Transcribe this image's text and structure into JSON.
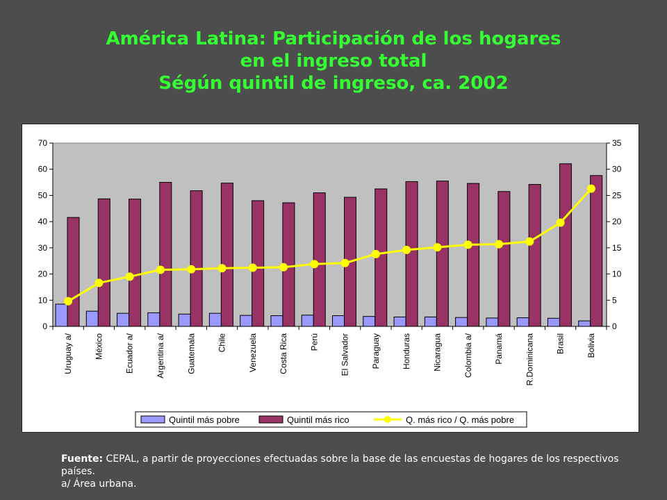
{
  "title": {
    "line1": "América Latina: Participación de los hogares",
    "line2": "en el ingreso total",
    "line3": "Ségún quintil de ingreso, ca. 2002"
  },
  "footer": {
    "source_label": "Fuente:",
    "source_text": " CEPAL, a partir de proyecciones efectuadas sobre la base de las encuestas de hogares de los respectivos países.",
    "note": "a/ Área urbana."
  },
  "colors": {
    "background": "#4d4d4d",
    "title": "#33ff33",
    "plot_area": "#c0c0c0",
    "poorest": "#9999ff",
    "richest": "#993366",
    "ratio_line": "#ffff00"
  },
  "chart_data": {
    "type": "bar",
    "categories": [
      "Uruguay a/",
      "México",
      "Ecuador a/",
      "Argentina a/",
      "Guatemala",
      "Chile",
      "Venezuela",
      "Costa Rica",
      "Perú",
      "El Salvador",
      "Paraguay",
      "Honduras",
      "Nicaragua",
      "Colombia a/",
      "Panamá",
      "R.Dominicana",
      "Brasil",
      "Bolivia"
    ],
    "series": [
      {
        "name": "Quintil más pobre",
        "type": "bar",
        "axis": "left",
        "values": [
          8.5,
          5.8,
          5.0,
          5.2,
          4.7,
          5.0,
          4.2,
          4.1,
          4.3,
          4.1,
          3.8,
          3.6,
          3.6,
          3.4,
          3.2,
          3.3,
          3.1,
          2.1
        ]
      },
      {
        "name": "Quintil más rico",
        "type": "bar",
        "axis": "left",
        "values": [
          41.6,
          48.7,
          48.6,
          55.0,
          51.8,
          54.7,
          48.0,
          47.2,
          51.0,
          49.3,
          52.5,
          55.3,
          55.5,
          54.6,
          51.5,
          54.2,
          62.1,
          57.6
        ]
      },
      {
        "name": "Q. más rico / Q. más pobre",
        "type": "line",
        "axis": "right",
        "values": [
          4.8,
          8.3,
          9.5,
          10.8,
          10.9,
          11.1,
          11.2,
          11.3,
          11.9,
          12.1,
          13.8,
          14.6,
          15.1,
          15.6,
          15.7,
          16.2,
          19.8,
          26.3
        ]
      }
    ],
    "ylim_left": [
      0,
      70
    ],
    "yticks_left": [
      "0",
      "10",
      "20",
      "30",
      "40",
      "50",
      "60",
      "70"
    ],
    "ylim_right": [
      0,
      35
    ],
    "yticks_right": [
      "0",
      "5",
      "10",
      "15",
      "20",
      "25",
      "30",
      "35"
    ],
    "grid": false,
    "legend_position": "bottom"
  }
}
